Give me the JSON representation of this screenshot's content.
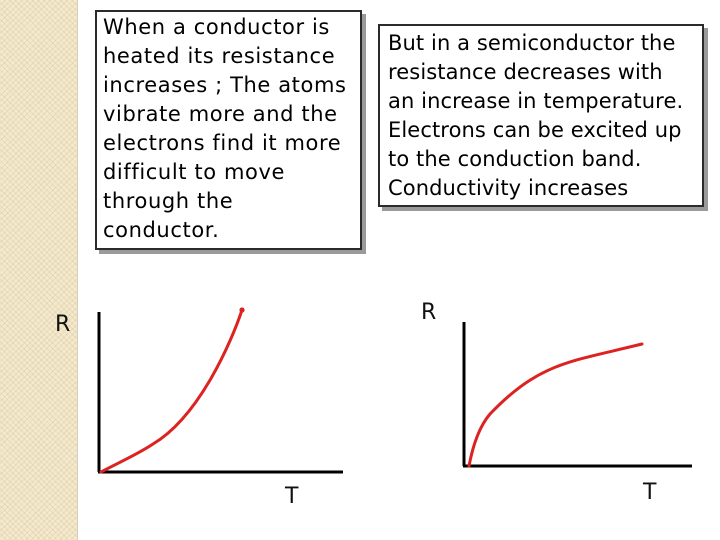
{
  "conductor": {
    "text": "When a conductor is\nheated its resistance\nincreases ; The atoms\nvibrate more and the\nelectrons find it more\ndifficult to move\nthrough the\nconductor.",
    "y_axis_label": "R",
    "x_axis_label": "T"
  },
  "semiconductor": {
    "text": "But in a semiconductor the\nresistance decreases with\nan increase in temperature.\nElectrons can be excited up\nto the conduction band.\nConductivity increases",
    "y_axis_label": "R",
    "x_axis_label": "T"
  },
  "colors": {
    "curve": "#dd2222",
    "axes": "#000000",
    "side_strip": "#f4e9cd"
  }
}
